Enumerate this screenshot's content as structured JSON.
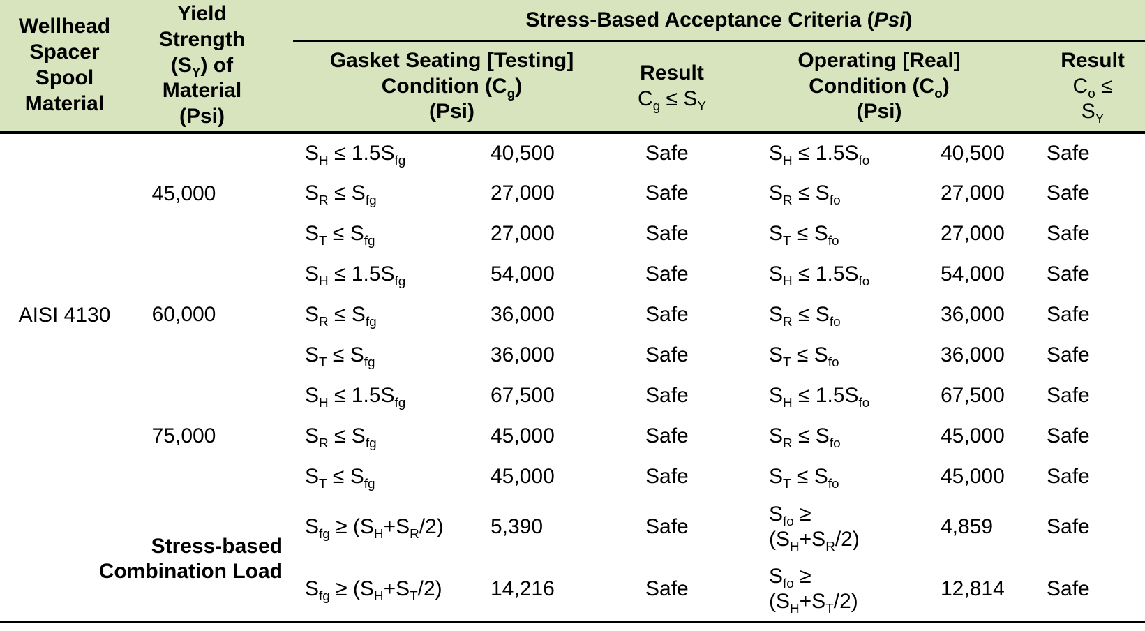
{
  "table": {
    "header": {
      "material": "Wellhead\nSpacer\nSpool\nMaterial",
      "yield": "Yield\nStrength\n(S_{Y}) of\nMaterial\n(Psi)",
      "group_prefix": "Stress-Based Acceptance Criteria (",
      "group_italic": "Psi",
      "group_suffix": ")",
      "gasket": "Gasket Seating [Testing]\nCondition (C_{g})\n(Psi)",
      "result_g_title": "Result",
      "result_g_condition": "C_{g} ≤ S_{Y}",
      "operating": "Operating [Real]\nCondition (C_{o})\n(Psi)",
      "result_o_title": "Result",
      "result_o_condition": "C_{o} ≤\nS_{Y}"
    },
    "material": "AISI 4130",
    "yields": [
      "45,000",
      "60,000",
      "75,000"
    ],
    "combo_label": "Stress-based\nCombination Load",
    "rows": [
      {
        "gasket_formula": "S_{H} ≤ 1.5S_{fg}",
        "gasket_value": "40,500",
        "gasket_result": "Safe",
        "operating_formula": "S_{H} ≤ 1.5S_{fo}",
        "operating_value": "40,500",
        "operating_result": "Safe"
      },
      {
        "gasket_formula": "S_{R} ≤ S_{fg}",
        "gasket_value": "27,000",
        "gasket_result": "Safe",
        "operating_formula": "S_{R} ≤ S_{fo}",
        "operating_value": "27,000",
        "operating_result": "Safe"
      },
      {
        "gasket_formula": "S_{T} ≤ S_{fg}",
        "gasket_value": "27,000",
        "gasket_result": "Safe",
        "operating_formula": "S_{T} ≤ S_{fo}",
        "operating_value": "27,000",
        "operating_result": "Safe"
      },
      {
        "gasket_formula": "S_{H} ≤ 1.5S_{fg}",
        "gasket_value": "54,000",
        "gasket_result": "Safe",
        "operating_formula": "S_{H} ≤ 1.5S_{fo}",
        "operating_value": "54,000",
        "operating_result": "Safe"
      },
      {
        "gasket_formula": "S_{R} ≤ S_{fg}",
        "gasket_value": "36,000",
        "gasket_result": "Safe",
        "operating_formula": "S_{R} ≤ S_{fo}",
        "operating_value": "36,000",
        "operating_result": "Safe"
      },
      {
        "gasket_formula": "S_{T} ≤ S_{fg}",
        "gasket_value": "36,000",
        "gasket_result": "Safe",
        "operating_formula": "S_{T} ≤ S_{fo}",
        "operating_value": "36,000",
        "operating_result": "Safe"
      },
      {
        "gasket_formula": "S_{H} ≤ 1.5S_{fg}",
        "gasket_value": "67,500",
        "gasket_result": "Safe",
        "operating_formula": "S_{H} ≤ 1.5S_{fo}",
        "operating_value": "67,500",
        "operating_result": "Safe"
      },
      {
        "gasket_formula": "S_{R} ≤ S_{fg}",
        "gasket_value": "45,000",
        "gasket_result": "Safe",
        "operating_formula": "S_{R} ≤ S_{fo}",
        "operating_value": "45,000",
        "operating_result": "Safe"
      },
      {
        "gasket_formula": "S_{T} ≤ S_{fg}",
        "gasket_value": "45,000",
        "gasket_result": "Safe",
        "operating_formula": "S_{T} ≤ S_{fo}",
        "operating_value": "45,000",
        "operating_result": "Safe"
      },
      {
        "gasket_formula": "S_{fg} ≥ (S_{H}+S_{R}/2)",
        "gasket_value": "5,390",
        "gasket_result": "Safe",
        "operating_formula": "S_{fo} ≥\n(S_{H}+S_{R}/2)",
        "operating_value": "4,859",
        "operating_result": "Safe"
      },
      {
        "gasket_formula": "S_{fg} ≥ (S_{H}+S_{T}/2)",
        "gasket_value": "14,216",
        "gasket_result": "Safe",
        "operating_formula": "S_{fo} ≥\n(S_{H}+S_{T}/2)",
        "operating_value": "12,814",
        "operating_result": "Safe"
      }
    ],
    "colors": {
      "header_background": "#d7e4bd",
      "text": "#000000",
      "rule": "#000000"
    }
  }
}
